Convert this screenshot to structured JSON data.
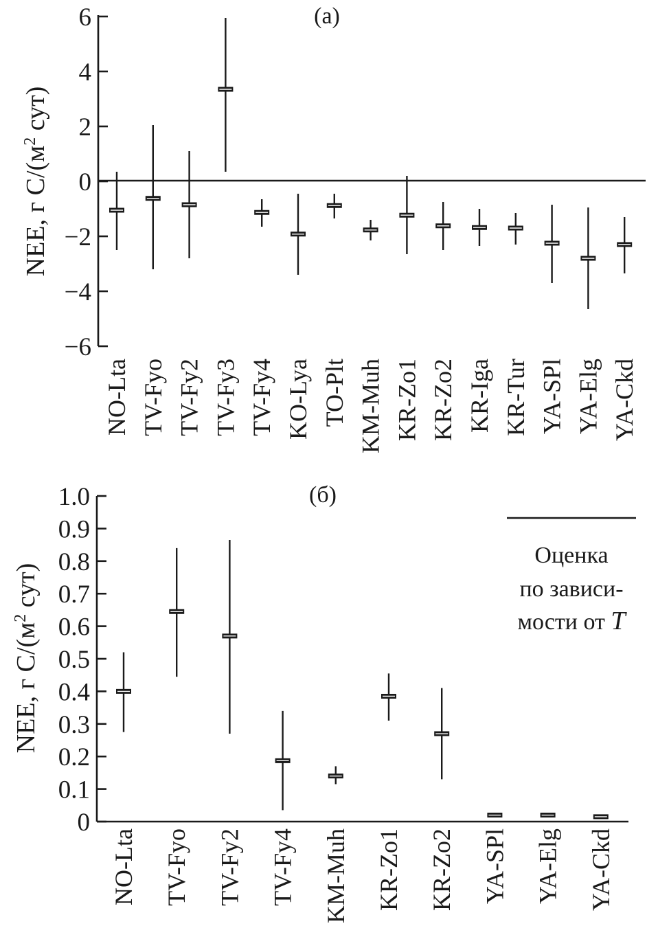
{
  "chart_data": [
    {
      "type": "scatter",
      "panel_label": "(а)",
      "ylabel_main": "NEE, г C/(м",
      "ylabel_sup": "2",
      "ylabel_end": " сут)",
      "ylim": [
        -6,
        6
      ],
      "yticks": [
        "6",
        "4",
        "2",
        "0",
        "−2",
        "−4",
        "−6"
      ],
      "ytick_values": [
        6,
        4,
        2,
        0,
        -2,
        -4,
        -6
      ],
      "zero_line": true,
      "categories": [
        "NO-Lta",
        "TV-Fyo",
        "TV-Fy2",
        "TV-Fy3",
        "TV-Fy4",
        "KO-Lya",
        "TO-Plt",
        "KM-Muh",
        "KR-Zo1",
        "KR-Zo2",
        "KR-Iga",
        "KR-Tur",
        "YA-SPl",
        "YA-Elg",
        "YA-Ckd"
      ],
      "values": [
        -1.05,
        -0.62,
        -0.85,
        3.35,
        -1.13,
        -1.92,
        -0.88,
        -1.77,
        -1.23,
        -1.62,
        -1.68,
        -1.7,
        -2.25,
        -2.8,
        -2.3
      ],
      "lower": [
        -2.5,
        -3.2,
        -2.8,
        0.35,
        -1.65,
        -3.4,
        -1.35,
        -2.15,
        -2.65,
        -2.5,
        -2.35,
        -2.3,
        -3.7,
        -4.65,
        -3.35
      ],
      "upper": [
        0.35,
        2.05,
        1.1,
        5.95,
        -0.65,
        -0.45,
        -0.45,
        -1.4,
        0.2,
        -0.75,
        -1.0,
        -1.15,
        -0.85,
        -0.95,
        -1.3
      ]
    },
    {
      "type": "scatter",
      "panel_label": "(б)",
      "ylabel_main": "NEE, г C/(м",
      "ylabel_sup": "2",
      "ylabel_end": " сут)",
      "ylim": [
        0,
        1.0
      ],
      "yticks": [
        "1.0",
        "0.9",
        "0.8",
        "0.7",
        "0.6",
        "0.5",
        "0.4",
        "0.3",
        "0.2",
        "0.1",
        "0"
      ],
      "ytick_values": [
        1.0,
        0.9,
        0.8,
        0.7,
        0.6,
        0.5,
        0.4,
        0.3,
        0.2,
        0.1,
        0
      ],
      "categories": [
        "NO-Lta",
        "TV-Fyo",
        "TV-Fy2",
        "TV-Fy4",
        "KM-Muh",
        "KR-Zo1",
        "KR-Zo2",
        "YA-SPl",
        "YA-Elg",
        "YA-Ckd"
      ],
      "values": [
        0.4,
        0.645,
        0.57,
        0.187,
        0.14,
        0.385,
        0.27,
        0.02,
        0.02,
        0.015
      ],
      "lower": [
        0.275,
        0.445,
        0.27,
        0.035,
        0.115,
        0.31,
        0.13,
        0.015,
        0.015,
        0.01
      ],
      "upper": [
        0.52,
        0.84,
        0.865,
        0.34,
        0.17,
        0.455,
        0.41,
        0.026,
        0.026,
        0.021
      ],
      "legend_lines": [
        "Оценка",
        "по зависи-",
        "мости от "
      ],
      "legend_italic": "T"
    }
  ]
}
